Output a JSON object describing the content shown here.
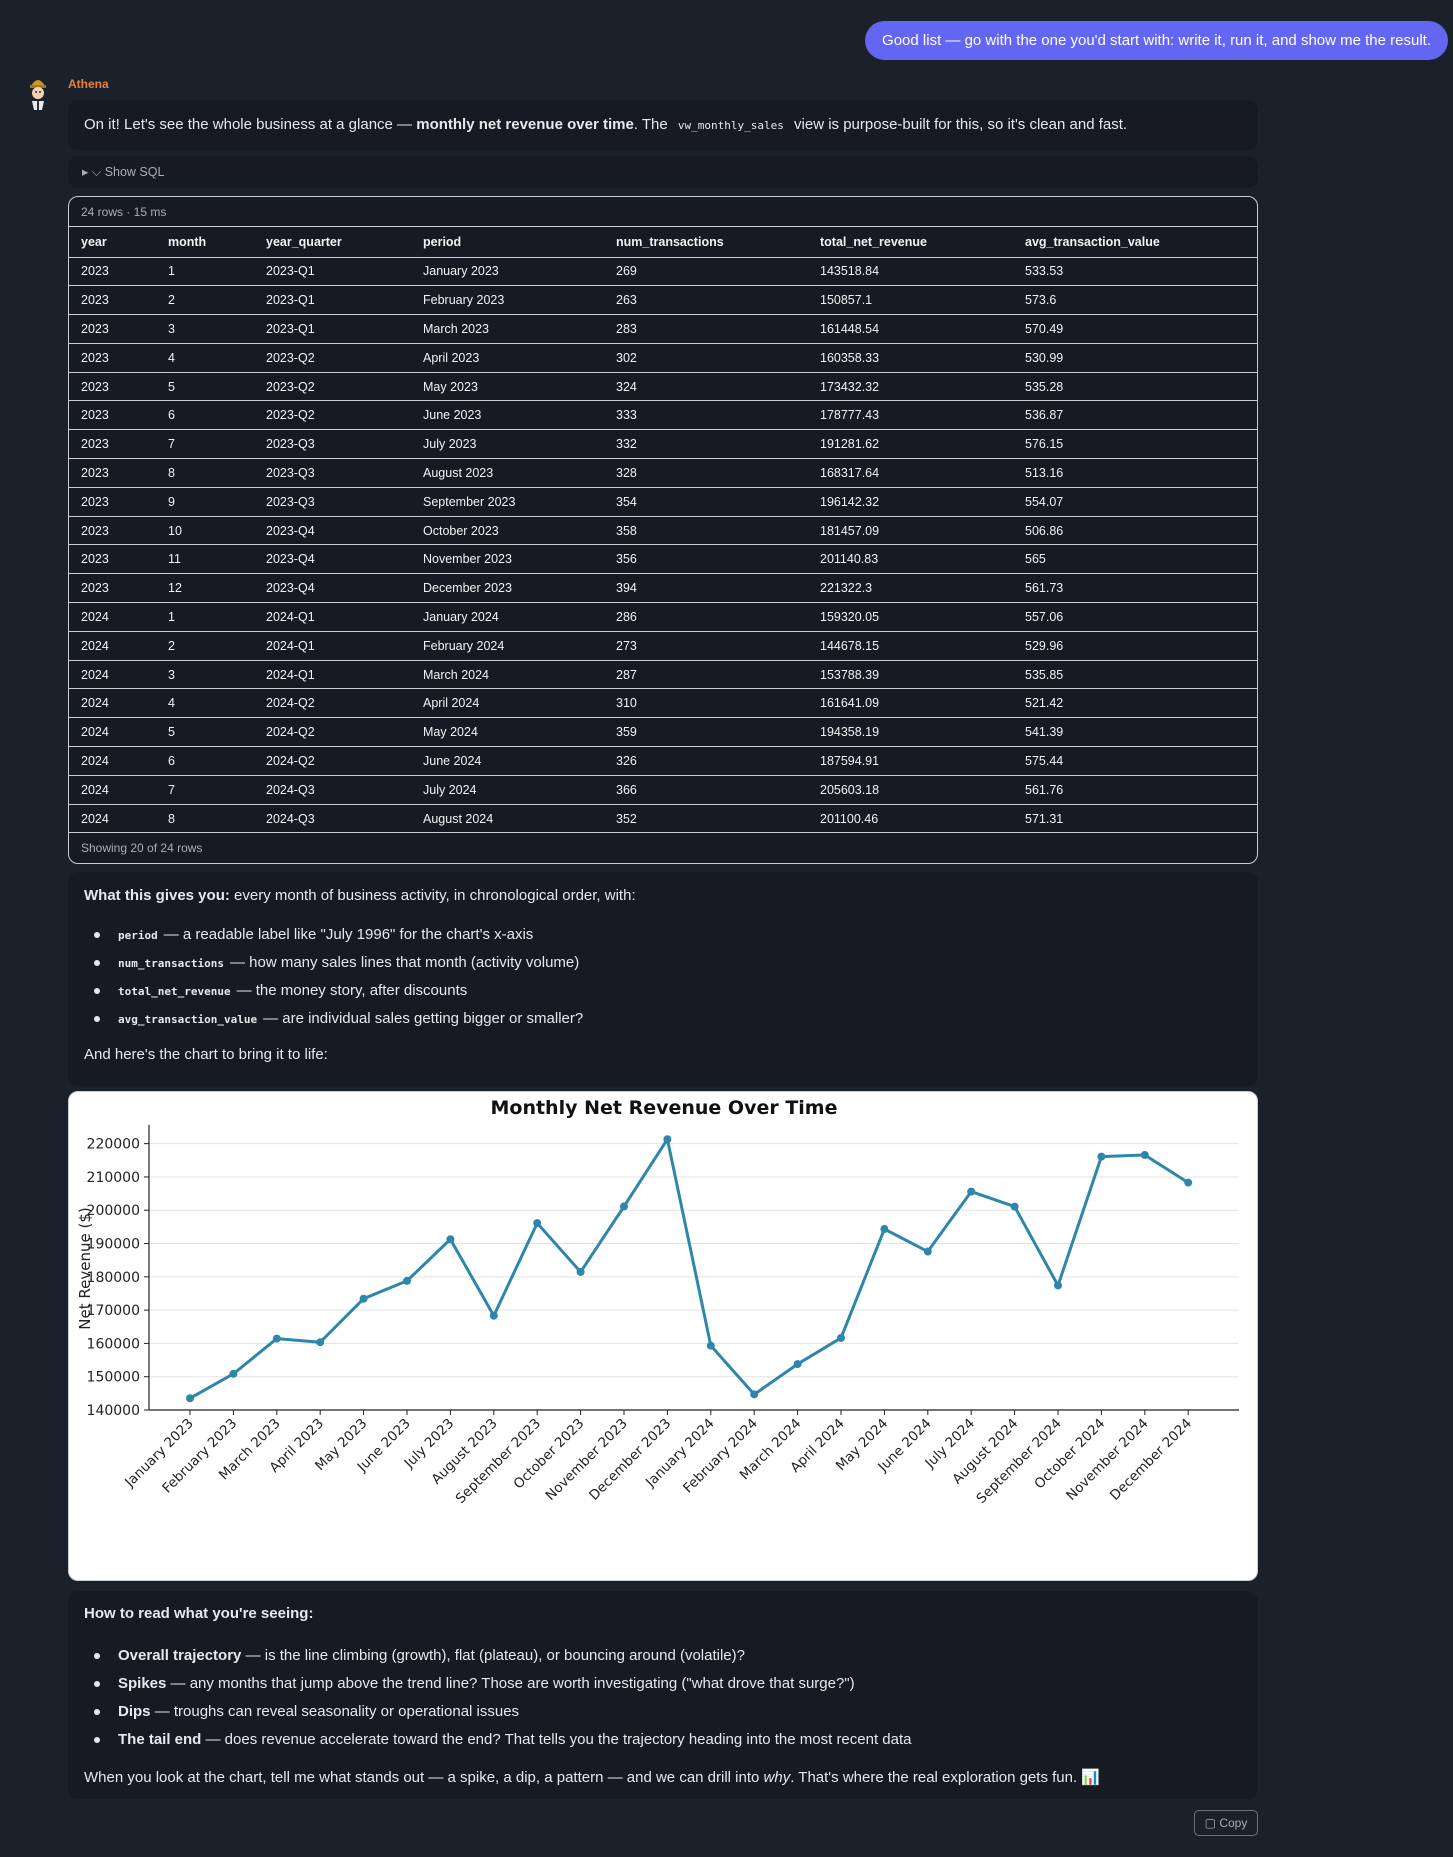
{
  "user_message": "Good list — go with the one you'd start with: write it, run it, and show me the result.",
  "assistant_name": "Athena",
  "intro": {
    "lead": "On it! Let's see the whole business at a glance — ",
    "bold": "monthly net revenue over time",
    "mid": ". The ",
    "code": "vw_monthly_sales",
    "tail": " view is purpose-built for this, so it's clean and fast."
  },
  "sql_toggle": "▸ ⌵ Show SQL",
  "result": {
    "meta": "24 rows · 15 ms",
    "columns": [
      "year",
      "month",
      "year_quarter",
      "period",
      "num_transactions",
      "total_net_revenue",
      "avg_transaction_value"
    ],
    "rows": [
      [
        "2023",
        "1",
        "2023-Q1",
        "January 2023",
        "269",
        "143518.84",
        "533.53"
      ],
      [
        "2023",
        "2",
        "2023-Q1",
        "February 2023",
        "263",
        "150857.1",
        "573.6"
      ],
      [
        "2023",
        "3",
        "2023-Q1",
        "March 2023",
        "283",
        "161448.54",
        "570.49"
      ],
      [
        "2023",
        "4",
        "2023-Q2",
        "April 2023",
        "302",
        "160358.33",
        "530.99"
      ],
      [
        "2023",
        "5",
        "2023-Q2",
        "May 2023",
        "324",
        "173432.32",
        "535.28"
      ],
      [
        "2023",
        "6",
        "2023-Q2",
        "June 2023",
        "333",
        "178777.43",
        "536.87"
      ],
      [
        "2023",
        "7",
        "2023-Q3",
        "July 2023",
        "332",
        "191281.62",
        "576.15"
      ],
      [
        "2023",
        "8",
        "2023-Q3",
        "August 2023",
        "328",
        "168317.64",
        "513.16"
      ],
      [
        "2023",
        "9",
        "2023-Q3",
        "September 2023",
        "354",
        "196142.32",
        "554.07"
      ],
      [
        "2023",
        "10",
        "2023-Q4",
        "October 2023",
        "358",
        "181457.09",
        "506.86"
      ],
      [
        "2023",
        "11",
        "2023-Q4",
        "November 2023",
        "356",
        "201140.83",
        "565"
      ],
      [
        "2023",
        "12",
        "2023-Q4",
        "December 2023",
        "394",
        "221322.3",
        "561.73"
      ],
      [
        "2024",
        "1",
        "2024-Q1",
        "January 2024",
        "286",
        "159320.05",
        "557.06"
      ],
      [
        "2024",
        "2",
        "2024-Q1",
        "February 2024",
        "273",
        "144678.15",
        "529.96"
      ],
      [
        "2024",
        "3",
        "2024-Q1",
        "March 2024",
        "287",
        "153788.39",
        "535.85"
      ],
      [
        "2024",
        "4",
        "2024-Q2",
        "April 2024",
        "310",
        "161641.09",
        "521.42"
      ],
      [
        "2024",
        "5",
        "2024-Q2",
        "May 2024",
        "359",
        "194358.19",
        "541.39"
      ],
      [
        "2024",
        "6",
        "2024-Q2",
        "June 2024",
        "326",
        "187594.91",
        "575.44"
      ],
      [
        "2024",
        "7",
        "2024-Q3",
        "July 2024",
        "366",
        "205603.18",
        "561.76"
      ],
      [
        "2024",
        "8",
        "2024-Q3",
        "August 2024",
        "352",
        "201100.46",
        "571.31"
      ]
    ],
    "footer": "Showing 20 of 24 rows"
  },
  "explain": {
    "lead_bold": "What this gives you:",
    "lead_text": " every month of business activity, in chronological order, with:",
    "items": [
      {
        "code": "period",
        "text": "— a readable label like \"July 1996\" for the chart's x-axis"
      },
      {
        "code": "num_transactions",
        "text": "— how many sales lines that month (activity volume)"
      },
      {
        "code": "total_net_revenue",
        "text": "— the money story, after discounts"
      },
      {
        "code": "avg_transaction_value",
        "text": "— are individual sales getting bigger or smaller?"
      }
    ],
    "outro": "And here's the chart to bring it to life:"
  },
  "chart_data": {
    "type": "line",
    "title": "Monthly Net Revenue Over Time",
    "xlabel": "",
    "ylabel": "Net Revenue ($)",
    "x": [
      "January 2023",
      "February 2023",
      "March 2023",
      "April 2023",
      "May 2023",
      "June 2023",
      "July 2023",
      "August 2023",
      "September 2023",
      "October 2023",
      "November 2023",
      "December 2023",
      "January 2024",
      "February 2024",
      "March 2024",
      "April 2024",
      "May 2024",
      "June 2024",
      "July 2024",
      "August 2024",
      "September 2024",
      "October 2024",
      "November 2024",
      "December 2024"
    ],
    "y": [
      143518.84,
      150857.1,
      161448.54,
      160358.33,
      173432.32,
      178777.43,
      191281.62,
      168317.64,
      196142.32,
      181457.09,
      201140.83,
      221322.3,
      159320.05,
      144678.15,
      153788.39,
      161641.09,
      194358.19,
      187594.91,
      205603.18,
      201100.46,
      177400,
      216100,
      216600,
      208300
    ],
    "yticks": [
      140000,
      150000,
      160000,
      170000,
      180000,
      190000,
      200000,
      210000,
      220000
    ],
    "ylim": [
      140000,
      225000
    ],
    "grid": "horizontal",
    "color": "#2e86ab"
  },
  "read": {
    "heading": "How to read what you're seeing:",
    "items": [
      {
        "bold": "Overall trajectory",
        "text": " — is the line climbing (growth), flat (plateau), or bouncing around (volatile)?"
      },
      {
        "bold": "Spikes",
        "text": " — any months that jump above the trend line? Those are worth investigating (\"what drove that surge?\")"
      },
      {
        "bold": "Dips",
        "text": " — troughs can reveal seasonality or operational issues"
      },
      {
        "bold": "The tail end",
        "text": " — does revenue accelerate toward the end? That tells you the trajectory heading into the most recent data"
      }
    ],
    "outro_pre": "When you look at the chart, tell me what stands out — a spike, a dip, a pattern — and we can drill into ",
    "outro_em": "why",
    "outro_post": ". That's where the real exploration gets fun. 📊"
  },
  "copy_label": "▢ Copy"
}
